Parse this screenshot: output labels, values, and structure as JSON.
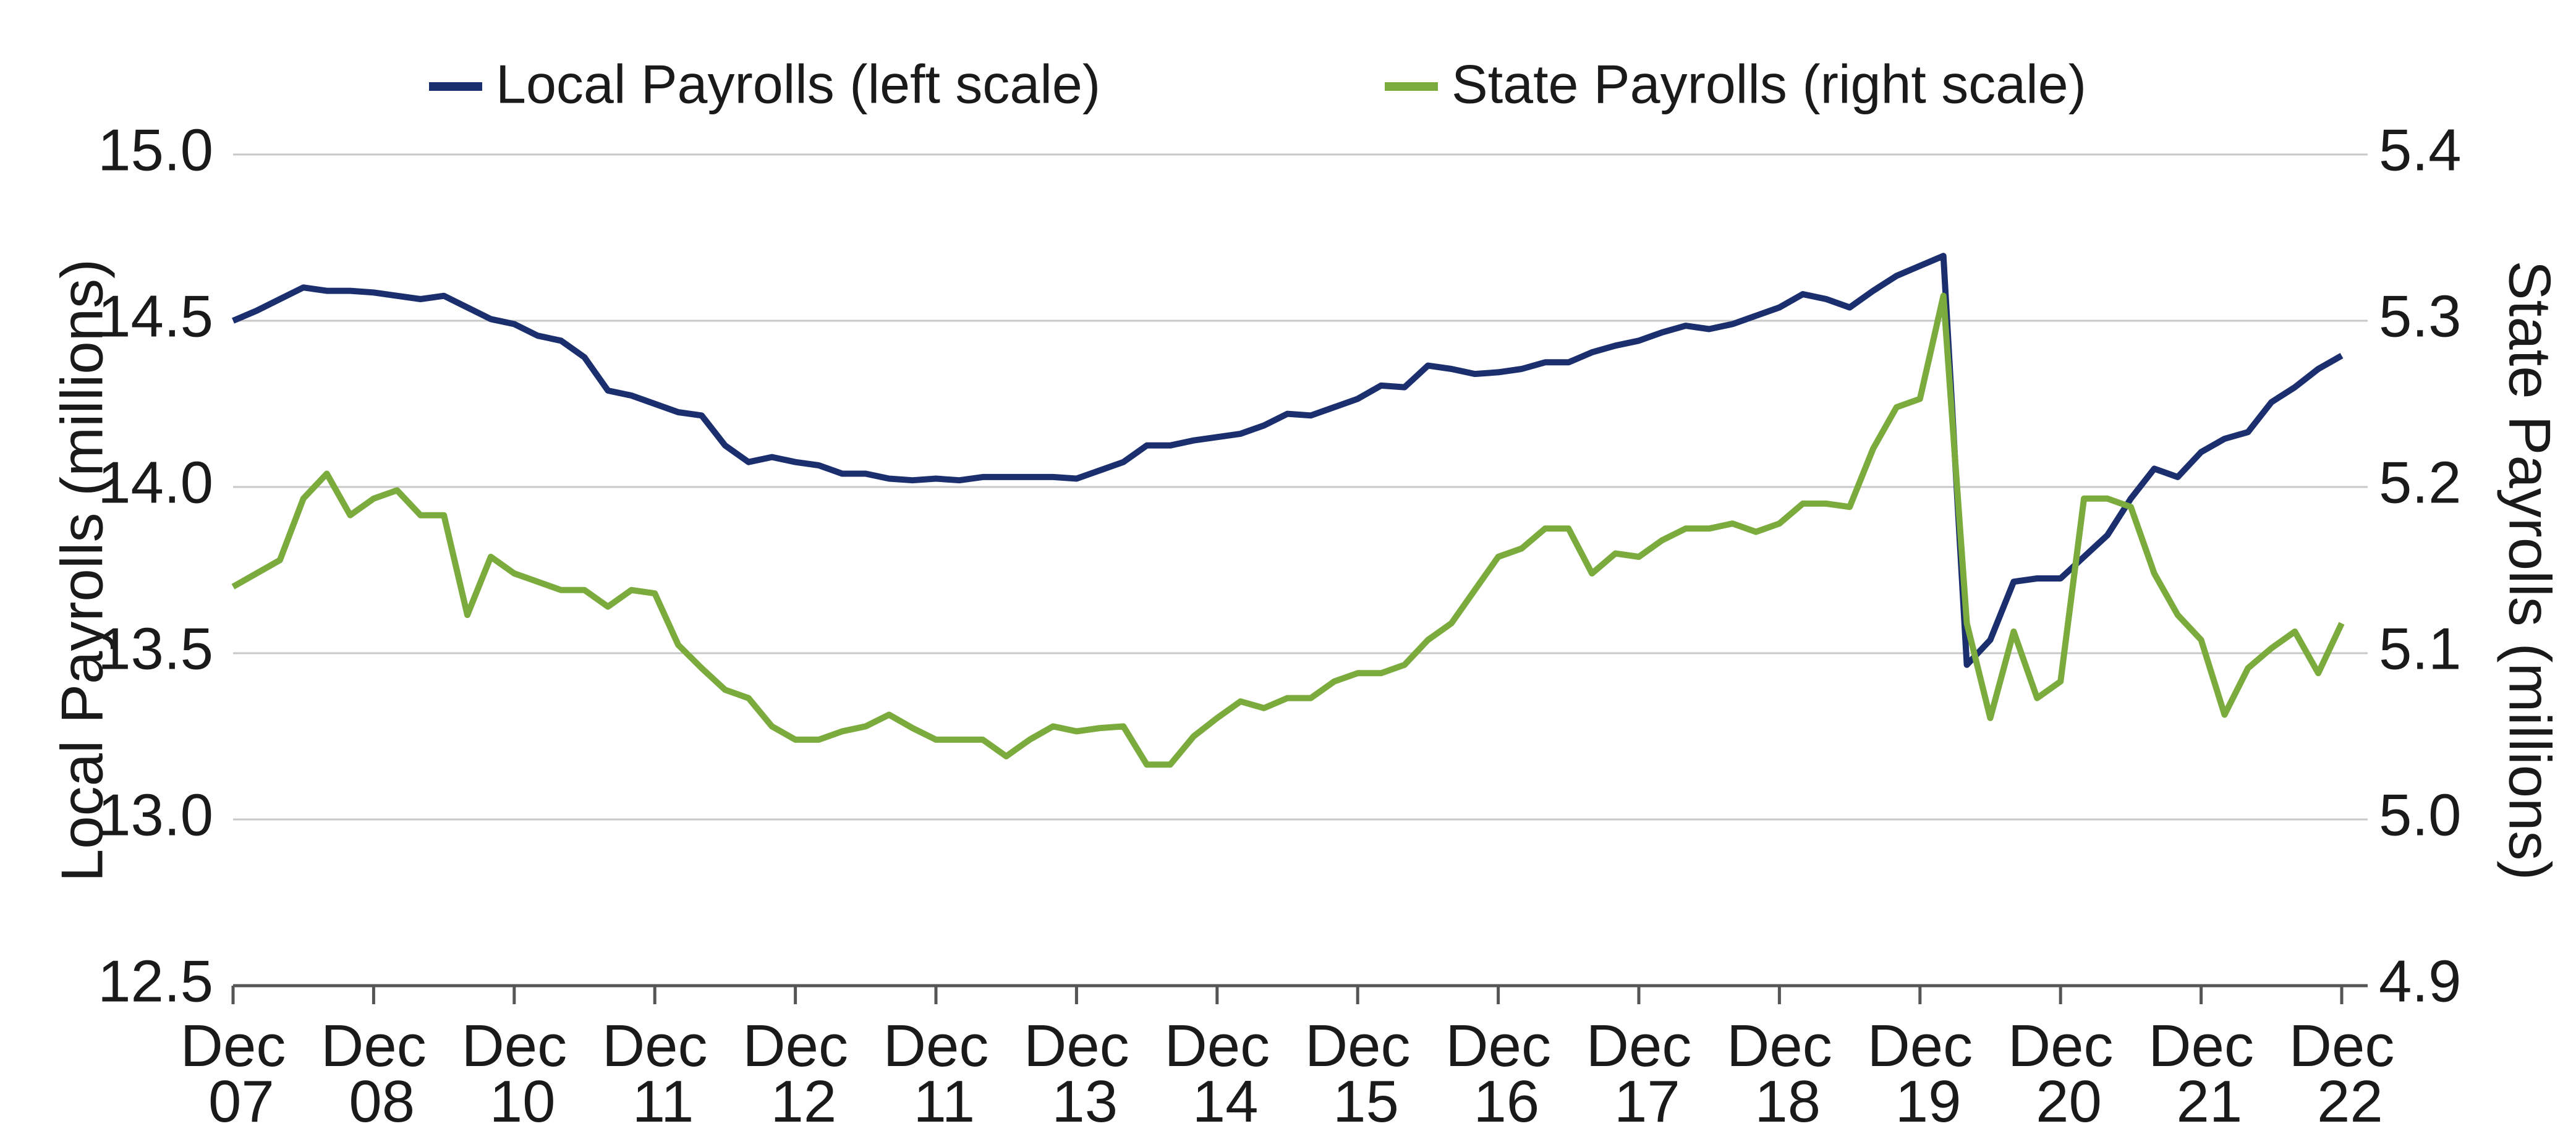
{
  "chart_data": {
    "type": "line",
    "categories": [
      "Dec 07",
      null,
      null,
      null,
      null,
      null,
      "Dec 08",
      null,
      null,
      null,
      null,
      null,
      "Dec 10",
      null,
      null,
      null,
      null,
      null,
      "Dec 11",
      null,
      null,
      null,
      null,
      null,
      "Dec 12",
      null,
      null,
      null,
      null,
      null,
      "Dec 11",
      null,
      null,
      null,
      null,
      null,
      "Dec 13",
      null,
      null,
      null,
      null,
      null,
      "Dec 14",
      null,
      null,
      null,
      null,
      null,
      "Dec 15",
      null,
      null,
      null,
      null,
      null,
      "Dec 16",
      null,
      null,
      null,
      null,
      null,
      "Dec 17",
      null,
      null,
      null,
      null,
      null,
      "Dec 18",
      null,
      null,
      null,
      null,
      null,
      "Dec 19",
      null,
      null,
      null,
      null,
      null,
      "Dec 20",
      null,
      null,
      null,
      null,
      null,
      "Dec 21",
      null,
      null,
      null,
      null,
      null,
      "Dec 22"
    ],
    "series": [
      {
        "name": "Local Payrolls (left scale)",
        "color": "#1b2f6e",
        "values": [
          14.5,
          14.53,
          14.565,
          14.6,
          14.59,
          14.59,
          14.585,
          14.575,
          14.565,
          14.575,
          14.54,
          14.505,
          14.49,
          14.455,
          14.44,
          14.39,
          14.29,
          14.275,
          14.25,
          14.225,
          14.215,
          14.125,
          14.075,
          14.09,
          14.075,
          14.065,
          14.04,
          14.04,
          14.025,
          14.02,
          14.025,
          14.02,
          14.03,
          14.03,
          14.03,
          14.03,
          14.025,
          14.05,
          14.075,
          14.125,
          14.125,
          14.14,
          14.15,
          14.16,
          14.185,
          14.22,
          14.215,
          14.24,
          14.265,
          14.305,
          14.3,
          14.365,
          14.355,
          14.34,
          14.345,
          14.355,
          14.375,
          14.375,
          14.405,
          14.425,
          14.44,
          14.465,
          14.485,
          14.475,
          14.49,
          14.515,
          14.54,
          14.58,
          14.565,
          14.54,
          14.59,
          14.635,
          14.665,
          14.695,
          13.465,
          13.54,
          13.715,
          13.725,
          13.725,
          13.79,
          13.855,
          13.965,
          14.055,
          14.03,
          14.105,
          14.145,
          14.165,
          14.255,
          14.3,
          14.355,
          14.395
        ]
      },
      {
        "name": "State Payrolls (right scale)",
        "color": "#7bab3d",
        "axis": "y2",
        "values": [
          5.14,
          5.148,
          5.156,
          5.193,
          5.208,
          5.183,
          5.193,
          5.198,
          5.183,
          5.183,
          5.123,
          5.158,
          5.148,
          5.143,
          5.138,
          5.138,
          5.128,
          5.138,
          5.136,
          5.105,
          5.091,
          5.078,
          5.073,
          5.056,
          5.048,
          5.048,
          5.053,
          5.056,
          5.063,
          5.055,
          5.048,
          5.048,
          5.048,
          5.038,
          5.048,
          5.056,
          5.053,
          5.055,
          5.056,
          5.033,
          5.033,
          5.05,
          5.061,
          5.071,
          5.067,
          5.073,
          5.073,
          5.083,
          5.088,
          5.088,
          5.093,
          5.108,
          5.118,
          5.138,
          5.158,
          5.163,
          5.175,
          5.175,
          5.148,
          5.16,
          5.158,
          5.168,
          5.175,
          5.175,
          5.178,
          5.173,
          5.178,
          5.19,
          5.19,
          5.188,
          5.223,
          5.248,
          5.253,
          5.315,
          5.118,
          5.061,
          5.113,
          5.073,
          5.083,
          5.193,
          5.193,
          5.188,
          5.148,
          5.123,
          5.108,
          5.063,
          5.091,
          5.103,
          5.113,
          5.088,
          5.118
        ]
      }
    ],
    "y_label": "Local Payrolls (millions)",
    "y2_label": "State Payrolls (millions)",
    "ylim": [
      12.5,
      15.0
    ],
    "yticks": [
      12.5,
      {
        "value": 13,
        "label": "13.0"
      },
      13.5,
      {
        "value": 14,
        "label": "14.0"
      },
      14.5,
      {
        "value": 15,
        "label": "15.0"
      }
    ],
    "y2lim": [
      4.9,
      5.4
    ],
    "y2ticks": [
      4.9,
      {
        "value": 5,
        "label": "5.0"
      },
      5.1,
      5.2,
      5.3,
      5.4
    ],
    "grid": true,
    "legend": "top"
  }
}
